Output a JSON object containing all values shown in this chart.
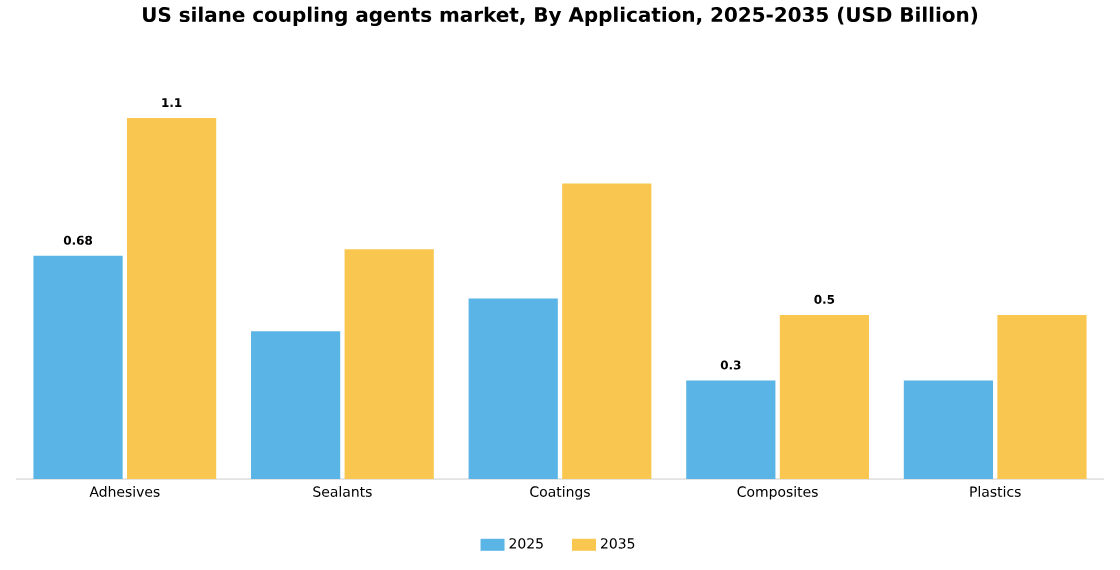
{
  "chart_data": {
    "type": "bar",
    "title": "US silane coupling agents market, By Application, 2025-2035 (USD Billion)",
    "categories": [
      "Adhesives",
      "Sealants",
      "Coatings",
      "Composites",
      "Plastics"
    ],
    "series": [
      {
        "name": "2025",
        "color": "#5ab4e5",
        "values": [
          0.68,
          0.45,
          0.55,
          0.3,
          0.3
        ],
        "value_labels": [
          "0.68",
          null,
          null,
          "0.3",
          null
        ]
      },
      {
        "name": "2035",
        "color": "#f9c74f",
        "values": [
          1.1,
          0.7,
          0.9,
          0.5,
          0.5
        ],
        "value_labels": [
          "1.1",
          null,
          null,
          "0.5",
          null
        ]
      }
    ],
    "legend": "bottom",
    "tick_labels": "x"
  }
}
